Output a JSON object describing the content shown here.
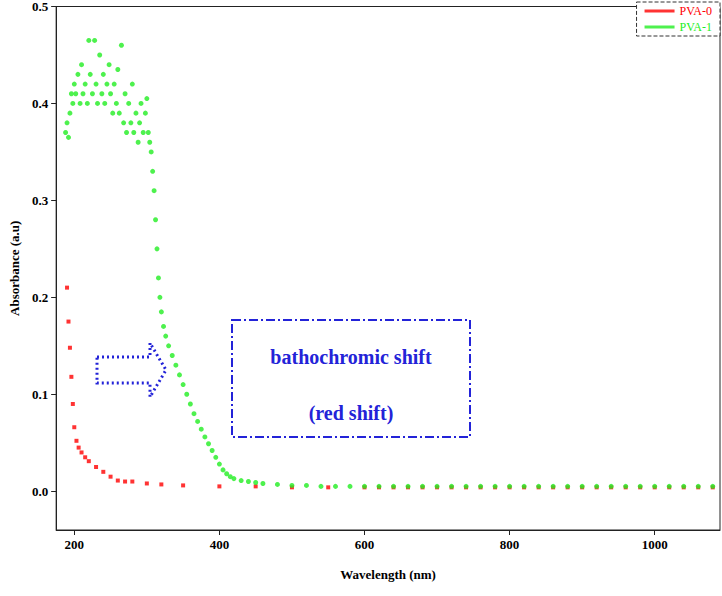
{
  "chart_data": {
    "type": "scatter",
    "x_label": "Wavelength (nm)",
    "y_label": "Absorbance (a.u)",
    "xlim": [
      175,
      1090
    ],
    "xticks": [
      200,
      400,
      600,
      800,
      1000
    ],
    "ylim": [
      -0.04,
      0.5
    ],
    "yticks": [
      {
        "value": 0,
        "label": "0.0"
      },
      0.1,
      0.2,
      0.3,
      0.4,
      0.5
    ],
    "grid": false,
    "legend": "top-right",
    "annotations": [
      "bathochromic shift",
      "(red shift)"
    ],
    "series": [
      {
        "name": "PVA-0",
        "color": "#ff0000",
        "marker": "square",
        "x": [
          190,
          192,
          194,
          196,
          198,
          200,
          203,
          206,
          210,
          215,
          220,
          230,
          240,
          250,
          260,
          270,
          280,
          300,
          320,
          350,
          400,
          450,
          500,
          550,
          600,
          620,
          640,
          660,
          680,
          700,
          720,
          740,
          760,
          780,
          800,
          820,
          840,
          860,
          880,
          900,
          920,
          940,
          960,
          980,
          1000,
          1020,
          1040,
          1060,
          1080
        ],
        "values": [
          0.21,
          0.175,
          0.148,
          0.118,
          0.09,
          0.066,
          0.052,
          0.045,
          0.04,
          0.035,
          0.031,
          0.025,
          0.02,
          0.015,
          0.011,
          0.01,
          0.01,
          0.008,
          0.007,
          0.006,
          0.005,
          0.005,
          0.004,
          0.004,
          0.004,
          0.004,
          0.004,
          0.004,
          0.004,
          0.004,
          0.004,
          0.004,
          0.004,
          0.004,
          0.004,
          0.004,
          0.004,
          0.004,
          0.004,
          0.004,
          0.004,
          0.004,
          0.004,
          0.004,
          0.004,
          0.004,
          0.004,
          0.004,
          0.004
        ]
      },
      {
        "name": "PVA-1",
        "color": "#22ee22",
        "marker": "circle",
        "x": [
          188,
          190,
          192,
          194,
          196,
          198,
          200,
          202,
          205,
          208,
          210,
          212,
          215,
          218,
          220,
          222,
          225,
          228,
          230,
          232,
          235,
          238,
          240,
          242,
          245,
          248,
          250,
          253,
          255,
          258,
          260,
          262,
          265,
          268,
          270,
          272,
          275,
          278,
          280,
          282,
          285,
          288,
          290,
          292,
          295,
          298,
          300,
          302,
          304,
          306,
          308,
          310,
          312,
          314,
          316,
          318,
          320,
          323,
          326,
          330,
          335,
          340,
          345,
          350,
          355,
          360,
          365,
          370,
          375,
          380,
          385,
          390,
          395,
          400,
          405,
          410,
          415,
          420,
          430,
          440,
          450,
          460,
          480,
          500,
          520,
          540,
          560,
          580,
          600,
          620,
          640,
          660,
          680,
          700,
          720,
          740,
          760,
          780,
          800,
          820,
          840,
          860,
          880,
          900,
          920,
          940,
          960,
          980,
          1000,
          1020,
          1040,
          1060,
          1080
        ],
        "values": [
          0.37,
          0.38,
          0.365,
          0.39,
          0.41,
          0.4,
          0.42,
          0.41,
          0.43,
          0.4,
          0.44,
          0.41,
          0.42,
          0.4,
          0.465,
          0.43,
          0.41,
          0.465,
          0.42,
          0.4,
          0.45,
          0.41,
          0.43,
          0.4,
          0.42,
          0.44,
          0.41,
          0.39,
          0.42,
          0.4,
          0.435,
          0.39,
          0.46,
          0.38,
          0.41,
          0.37,
          0.4,
          0.38,
          0.42,
          0.37,
          0.39,
          0.36,
          0.38,
          0.4,
          0.37,
          0.39,
          0.405,
          0.37,
          0.36,
          0.35,
          0.33,
          0.31,
          0.28,
          0.25,
          0.22,
          0.2,
          0.185,
          0.17,
          0.16,
          0.15,
          0.14,
          0.13,
          0.12,
          0.11,
          0.1,
          0.09,
          0.08,
          0.072,
          0.064,
          0.056,
          0.049,
          0.042,
          0.035,
          0.028,
          0.022,
          0.018,
          0.015,
          0.013,
          0.011,
          0.01,
          0.009,
          0.008,
          0.007,
          0.006,
          0.006,
          0.005,
          0.005,
          0.005,
          0.005,
          0.005,
          0.005,
          0.005,
          0.005,
          0.005,
          0.005,
          0.005,
          0.005,
          0.005,
          0.005,
          0.005,
          0.005,
          0.005,
          0.005,
          0.005,
          0.005,
          0.005,
          0.005,
          0.005,
          0.005,
          0.005,
          0.005,
          0.005,
          0.005
        ]
      }
    ]
  }
}
